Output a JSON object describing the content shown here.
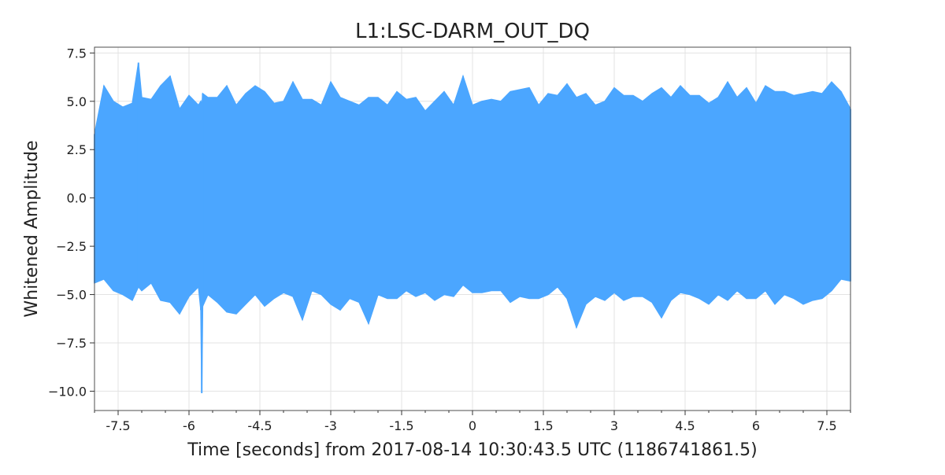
{
  "chart_data": {
    "type": "line",
    "title": "L1:LSC-DARM_OUT_DQ",
    "xlabel": "Time [seconds] from 2017-08-14 10:30:43.5 UTC (1186741861.5)",
    "ylabel": "Whitened Amplitude",
    "xlim": [
      -8,
      8
    ],
    "ylim": [
      -11,
      7.8
    ],
    "x_ticks": [
      -7.5,
      -6,
      -4.5,
      -3,
      -1.5,
      0,
      1.5,
      3,
      4.5,
      6,
      7.5
    ],
    "x_tick_labels": [
      "-7.5",
      "-6",
      "-4.5",
      "-3",
      "-1.5",
      "0",
      "1.5",
      "3",
      "4.5",
      "6",
      "7.5"
    ],
    "y_ticks": [
      7.5,
      5.0,
      2.5,
      0.0,
      -2.5,
      -5.0,
      -7.5,
      -10.0
    ],
    "y_tick_labels": [
      "7.5",
      "5.0",
      "2.5",
      "0.0",
      "−2.5",
      "−5.0",
      "−7.5",
      "−10.0"
    ],
    "grid": true,
    "line_color": "#4ba6ff",
    "series": [
      {
        "x": [
          -8,
          -7.8,
          -7.6,
          -7.4,
          -7.2,
          -7.07,
          -7.0,
          -6.8,
          -6.6,
          -6.4,
          -6.2,
          -6.0,
          -5.8,
          -5.75,
          -5.73,
          -5.71,
          -5.6,
          -5.4,
          -5.2,
          -5.0,
          -4.8,
          -4.6,
          -4.4,
          -4.2,
          -4.0,
          -3.8,
          -3.6,
          -3.4,
          -3.2,
          -3.0,
          -2.8,
          -2.6,
          -2.4,
          -2.2,
          -2.0,
          -1.8,
          -1.6,
          -1.4,
          -1.2,
          -1.0,
          -0.8,
          -0.6,
          -0.4,
          -0.2,
          0.0,
          0.2,
          0.4,
          0.6,
          0.8,
          1.0,
          1.2,
          1.4,
          1.6,
          1.8,
          2.0,
          2.2,
          2.4,
          2.6,
          2.8,
          3.0,
          3.2,
          3.4,
          3.6,
          3.8,
          4.0,
          4.2,
          4.4,
          4.6,
          4.8,
          5.0,
          5.2,
          5.4,
          5.6,
          5.8,
          6.0,
          6.2,
          6.4,
          6.6,
          6.8,
          7.0,
          7.2,
          7.4,
          7.6,
          7.8,
          8.0
        ],
        "upper": [
          3.3,
          5.8,
          5.0,
          4.7,
          4.9,
          7.0,
          5.2,
          5.1,
          5.8,
          6.3,
          4.6,
          5.3,
          4.8,
          5.0,
          4.6,
          5.4,
          5.2,
          5.2,
          5.8,
          4.8,
          5.4,
          5.8,
          5.5,
          4.9,
          5.0,
          6.0,
          5.1,
          5.1,
          4.8,
          6.0,
          5.2,
          5.0,
          4.8,
          5.2,
          5.2,
          4.8,
          5.5,
          5.1,
          5.2,
          4.5,
          5.0,
          5.5,
          4.8,
          6.3,
          4.8,
          5.0,
          5.1,
          5.0,
          5.5,
          5.6,
          5.7,
          4.8,
          5.4,
          5.3,
          5.9,
          5.2,
          5.4,
          4.8,
          5.0,
          5.7,
          5.3,
          5.3,
          5.0,
          5.4,
          5.7,
          5.2,
          5.8,
          5.3,
          5.3,
          4.9,
          5.2,
          6.0,
          5.2,
          5.7,
          4.9,
          5.8,
          5.5,
          5.5,
          5.3,
          5.4,
          5.5,
          5.4,
          6.0,
          5.5,
          4.6
        ],
        "lower": [
          -4.4,
          -4.2,
          -4.8,
          -5.0,
          -5.3,
          -4.6,
          -4.8,
          -4.4,
          -5.3,
          -5.4,
          -6.0,
          -5.1,
          -4.6,
          -5.8,
          -10.1,
          -5.6,
          -5.0,
          -5.4,
          -5.9,
          -6.0,
          -5.5,
          -5.0,
          -5.6,
          -5.2,
          -4.9,
          -5.1,
          -6.3,
          -4.8,
          -5.0,
          -5.5,
          -5.8,
          -5.2,
          -5.4,
          -6.5,
          -5.0,
          -5.2,
          -5.2,
          -4.8,
          -5.1,
          -4.9,
          -5.3,
          -5.0,
          -5.1,
          -4.5,
          -4.9,
          -4.9,
          -4.8,
          -4.8,
          -5.4,
          -5.1,
          -5.2,
          -5.2,
          -5.0,
          -4.6,
          -5.2,
          -6.7,
          -5.5,
          -5.1,
          -5.3,
          -4.9,
          -5.3,
          -5.1,
          -5.1,
          -5.4,
          -6.2,
          -5.3,
          -4.9,
          -5.0,
          -5.2,
          -5.5,
          -5.0,
          -5.3,
          -4.8,
          -5.2,
          -5.2,
          -4.8,
          -5.5,
          -5.0,
          -5.2,
          -5.5,
          -5.3,
          -5.2,
          -4.8,
          -4.2,
          -4.3
        ]
      }
    ]
  }
}
